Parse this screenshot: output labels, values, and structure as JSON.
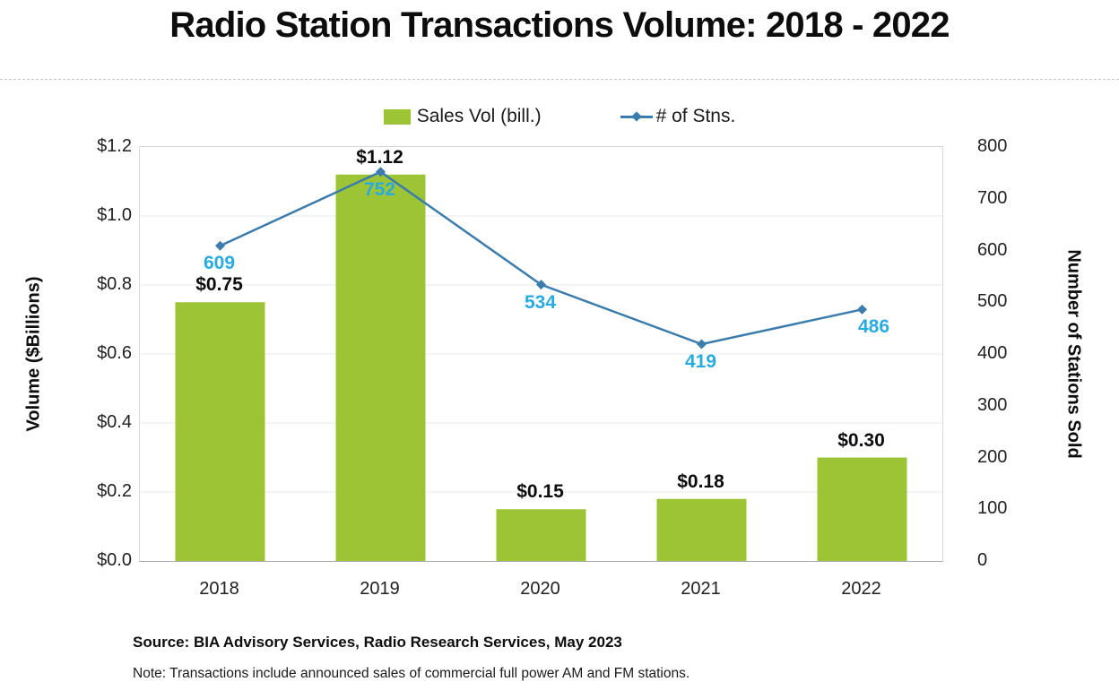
{
  "title": "Radio Station Transactions Volume: 2018 - 2022",
  "legend": {
    "bar_label": "Sales Vol (bill.)",
    "line_label": "# of Stns."
  },
  "chart_data": {
    "type": "combo-bar-line",
    "categories": [
      "2018",
      "2019",
      "2020",
      "2021",
      "2022"
    ],
    "series": [
      {
        "name": "Sales Vol (bill.)",
        "type": "bar",
        "axis": "left",
        "values": [
          0.75,
          1.12,
          0.15,
          0.18,
          0.3
        ],
        "data_labels": [
          "$0.75",
          "$1.12",
          "$0.15",
          "$0.18",
          "$0.30"
        ]
      },
      {
        "name": "# of Stns.",
        "type": "line",
        "axis": "right",
        "values": [
          609,
          752,
          534,
          419,
          486
        ],
        "data_labels": [
          "609",
          "752",
          "534",
          "419",
          "486"
        ]
      }
    ],
    "left_axis": {
      "title": "Volume ($Billions)",
      "min": 0,
      "max": 1.2,
      "tick_labels": [
        "$1.2",
        "$1.0",
        "$0.8",
        "$0.6",
        "$0.4",
        "$0.2",
        "$0.0"
      ]
    },
    "right_axis": {
      "title": "Number of Stations Sold",
      "min": 0,
      "max": 800,
      "tick_labels": [
        "800",
        "700",
        "600",
        "500",
        "400",
        "300",
        "200",
        "100",
        "0"
      ]
    },
    "grid": "horizontal gridlines at left-axis ticks",
    "legend_position": "top-center"
  },
  "colors": {
    "bar_fill": "#9DC435",
    "line_stroke": "#3B7CAD",
    "line_label_text": "#29ABE2",
    "gridline": "#EAEAEA",
    "plot_border": "#D9D9D9",
    "axis_line": "#ABABAB",
    "text": "#0D0D0D"
  },
  "footer": {
    "source": "Source: BIA Advisory Services, Radio Research Services, May 2023",
    "note": "Note: Transactions include announced sales of commercial full power AM and FM stations."
  }
}
